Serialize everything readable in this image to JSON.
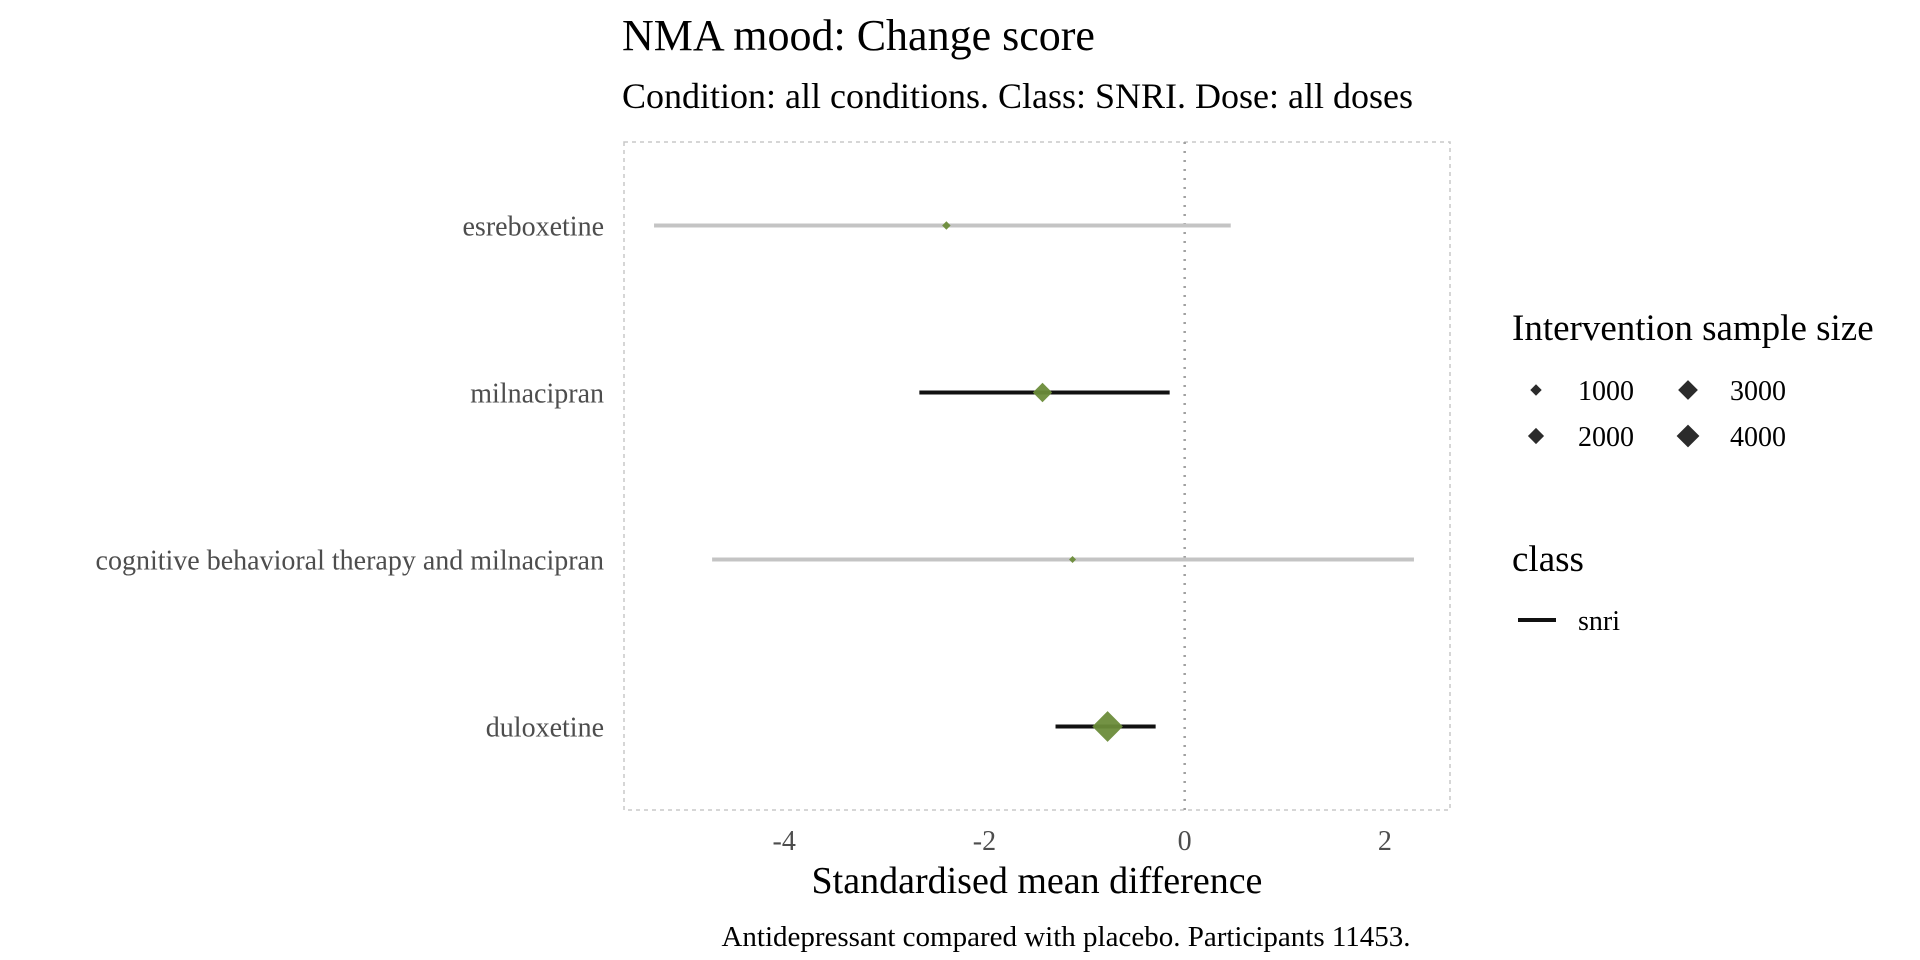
{
  "chart_data": {
    "type": "forest",
    "title": "NMA mood: Change score",
    "subtitle": "Condition: all conditions. Class: SNRI. Dose: all doses",
    "xlabel": "Standardised mean difference",
    "caption": "Antidepressant compared with placebo. Participants 11453.",
    "xlim": [
      -5.6,
      2.65
    ],
    "x_ticks": [
      -4,
      -2,
      0,
      2
    ],
    "x_tick_labels": [
      "-4",
      "-2",
      "0",
      "2"
    ],
    "reference_line": 0,
    "grid": false,
    "legend_position": "right",
    "categories": [
      "esreboxetine",
      "milnacipran",
      "cognitive behavioral therapy and milnacipran",
      "duloxetine"
    ],
    "estimates": [
      {
        "label": "esreboxetine",
        "estimate": -2.38,
        "lower": -5.3,
        "upper": 0.46,
        "sample_size": 500,
        "significant": false
      },
      {
        "label": "milnacipran",
        "estimate": -1.42,
        "lower": -2.65,
        "upper": -0.15,
        "sample_size": 2600,
        "significant": true
      },
      {
        "label": "cognitive behavioral therapy and milnacipran",
        "estimate": -1.12,
        "lower": -4.72,
        "upper": 2.29,
        "sample_size": 100,
        "significant": false
      },
      {
        "label": "duloxetine",
        "estimate": -0.77,
        "lower": -1.29,
        "upper": -0.29,
        "sample_size": 6500,
        "significant": true
      }
    ],
    "legend_size": {
      "title": "Intervention sample size",
      "entries": [
        {
          "label": "1000",
          "value": 1000
        },
        {
          "label": "2000",
          "value": 2000
        },
        {
          "label": "3000",
          "value": 3000
        },
        {
          "label": "4000",
          "value": 4000
        }
      ]
    },
    "legend_class": {
      "title": "class",
      "entries": [
        {
          "label": "snri"
        }
      ]
    },
    "colors": {
      "point": "#6b8c3a",
      "ci_significant": "#111111",
      "ci_nonsignificant": "#c4c4c4",
      "legend_marker": "#2b2b2b",
      "panel_border": "#c8c8c8",
      "reference_line": "#a0a0a0",
      "text": "#000000",
      "axis_text": "#4d4d4d"
    }
  }
}
